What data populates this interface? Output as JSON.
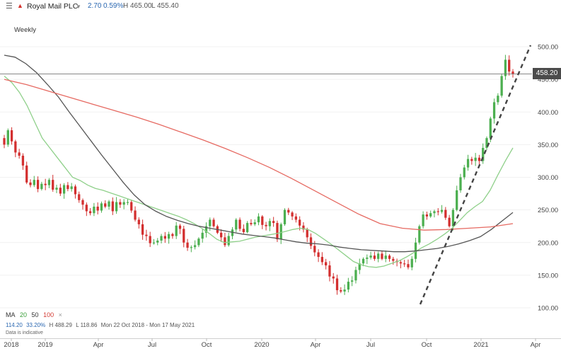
{
  "header": {
    "menu_icon": "hamburger-icon",
    "flag_icon": "flag-icon",
    "instrument": "Royal Mail PLC",
    "dropdown_icon": "chevron-down-icon",
    "change": "2.70",
    "change_pct": "0.59%",
    "high": "H 465.00",
    "low": "L 455.40"
  },
  "timeframe": "Weekly",
  "price_tag": "458.20",
  "ma_legend": {
    "label": "MA",
    "p1": "20",
    "p2": "50",
    "p3": "100",
    "close_symbol": "×"
  },
  "stats": {
    "change": "114.20",
    "change_pct": "33.20%",
    "high": "H 488.29",
    "low": "L 118.86",
    "range": "Mon 22 Oct 2018 - Mon 17 May 2021"
  },
  "indicative_note": "Data is indicative",
  "colors": {
    "up": "#4caf50",
    "down": "#d32f2f",
    "ma20": "#8fd08a",
    "ma50": "#555555",
    "ma100": "#e66a62",
    "trendline": "#444444",
    "last_price_line": "#777777"
  },
  "chart_data": {
    "type": "candlestick",
    "timeframe": "Weekly",
    "ylim": [
      100,
      500
    ],
    "y_ticks": [
      "500.00",
      "450.00",
      "400.00",
      "350.00",
      "300.00",
      "250.00",
      "200.00",
      "150.00",
      "100.00"
    ],
    "x_ticks": [
      "2018",
      "2019",
      "Apr",
      "Jul",
      "Oct",
      "2020",
      "Apr",
      "Jul",
      "Oct",
      "2021",
      "Apr"
    ],
    "last_price": 458.2,
    "closes": [
      350,
      372,
      355,
      338,
      333,
      318,
      292,
      288,
      296,
      282,
      290,
      288,
      296,
      281,
      284,
      275,
      288,
      282,
      286,
      274,
      265,
      258,
      248,
      245,
      255,
      249,
      260,
      255,
      263,
      248,
      262,
      258,
      262,
      262,
      249,
      235,
      228,
      212,
      210,
      199,
      200,
      203,
      210,
      206,
      213,
      210,
      226,
      221,
      200,
      192,
      193,
      196,
      206,
      215,
      225,
      235,
      225,
      215,
      208,
      196,
      210,
      220,
      235,
      221,
      216,
      230,
      228,
      231,
      240,
      227,
      225,
      233,
      230,
      205,
      228,
      250,
      246,
      240,
      235,
      226,
      220,
      208,
      195,
      185,
      178,
      170,
      165,
      148,
      145,
      127,
      125,
      128,
      140,
      142,
      158,
      168,
      175,
      177,
      180,
      175,
      183,
      175,
      180,
      175,
      172,
      170,
      168,
      167,
      162,
      175,
      200,
      225,
      243,
      240,
      245,
      248,
      247,
      250,
      238,
      225,
      250,
      280,
      300,
      315,
      328,
      325,
      330,
      325,
      345,
      360,
      390,
      415,
      425,
      455,
      480,
      462,
      458.2
    ],
    "series": [
      {
        "name": "MA 20",
        "values": [
          455,
          445,
          430,
          410,
          385,
          360,
          345,
          330,
          315,
          300,
          295,
          288,
          283,
          280,
          276,
          272,
          268,
          264,
          260,
          256,
          252,
          248,
          244,
          240,
          235,
          229,
          222,
          214,
          205,
          200,
          201,
          202,
          205,
          208,
          210,
          212,
          214,
          217,
          220,
          222,
          220,
          214,
          206,
          198,
          189,
          180,
          171,
          166,
          163,
          162,
          164,
          168,
          172,
          178,
          185,
          192,
          198,
          205,
          213,
          222,
          234,
          246,
          255,
          263,
          280,
          303,
          325,
          345
        ]
      },
      {
        "name": "MA 50",
        "values": [
          487,
          484,
          474,
          460,
          442,
          423,
          400,
          378,
          356,
          334,
          313,
          292,
          273,
          258,
          248,
          240,
          234,
          229,
          225,
          222,
          219,
          216,
          213,
          211,
          209,
          207,
          204,
          201,
          199,
          198,
          196,
          193,
          191,
          189,
          188,
          187,
          186,
          186,
          187,
          189,
          191,
          194,
          198,
          203,
          209,
          220,
          233,
          246
        ]
      },
      {
        "name": "MA 100",
        "values": [
          450,
          442,
          432,
          422,
          412,
          402,
          392,
          381,
          369,
          357,
          344,
          330,
          315,
          298,
          280,
          262,
          244,
          229,
          222,
          219,
          220,
          222,
          224,
          229
        ]
      }
    ],
    "annotations": [
      "dashed upward trendline",
      "last price line 458.20"
    ]
  }
}
